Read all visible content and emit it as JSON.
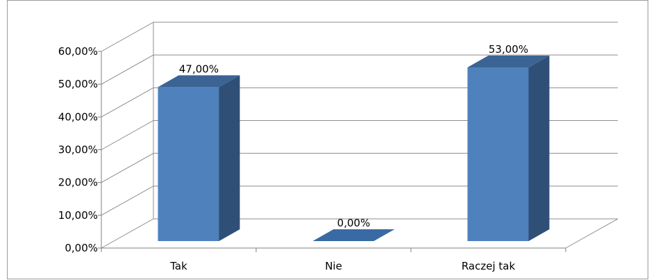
{
  "chart_data": {
    "type": "bar",
    "style": "3d-column",
    "categories": [
      "Tak",
      "Nie",
      "Raczej tak"
    ],
    "values": [
      47,
      0,
      53
    ],
    "data_labels": [
      "47,00%",
      "0,00%",
      "53,00%"
    ],
    "title": "",
    "xlabel": "",
    "ylabel": "",
    "ylim": [
      0,
      60
    ],
    "y_ticks": [
      "0,00%",
      "10,00%",
      "20,00%",
      "30,00%",
      "40,00%",
      "50,00%",
      "60,00%"
    ],
    "grid": true,
    "legend": "none",
    "colors": {
      "bar_front": "#4f81bd",
      "bar_side": "#2f4f77",
      "bar_top": "#3b6494",
      "gridline": "#8c8c8c",
      "axis": "#7f7f7f"
    }
  }
}
